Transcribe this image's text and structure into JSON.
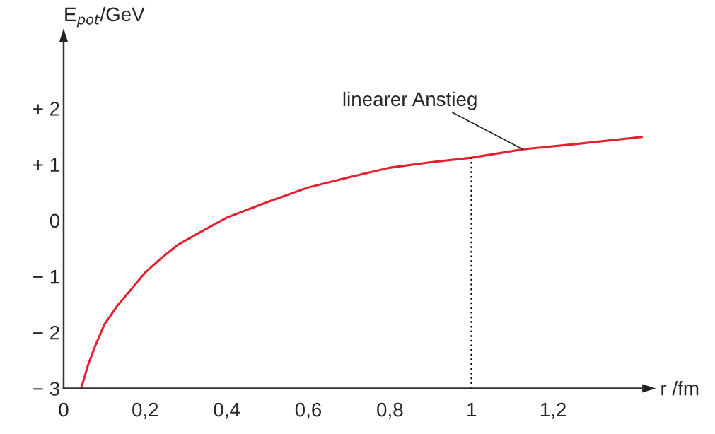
{
  "chart_data": {
    "type": "line",
    "xlabel": "r /fm",
    "ylabel": "E$_{pot}$/GeV",
    "x": [
      0.043,
      0.06,
      0.078,
      0.1,
      0.131,
      0.16,
      0.2,
      0.24,
      0.279,
      0.33,
      0.4,
      0.5,
      0.6,
      0.7,
      0.798,
      0.9,
      1.0,
      1.126,
      1.25,
      1.418
    ],
    "series": [
      {
        "color": "#e3202e",
        "values": [
          -3,
          -2.58,
          -2.23,
          -1.86,
          -1.53,
          -1.28,
          -0.93,
          -0.67,
          -0.44,
          -0.23,
          0.05,
          0.33,
          0.59,
          0.77,
          0.94,
          1.04,
          1.12,
          1.27,
          1.36,
          1.49
        ]
      }
    ],
    "xlim": [
      0,
      1.42
    ],
    "ylim": [
      -3,
      3.2
    ],
    "xticks": [
      0,
      {
        "value": 0.2,
        "label": "0,2"
      },
      {
        "value": 0.4,
        "label": "0,4"
      },
      {
        "value": 0.6,
        "label": "0,6"
      },
      {
        "value": 0.8,
        "label": "0,8"
      },
      1,
      {
        "value": 1.2,
        "label": "1,2"
      }
    ],
    "yticks": [
      {
        "value": -3,
        "label": "− 3"
      },
      {
        "value": -2,
        "label": "− 2"
      },
      {
        "value": -1,
        "label": "− 1"
      },
      0,
      {
        "value": 1,
        "label": "+ 1"
      },
      {
        "value": 2,
        "label": "+ 2"
      }
    ],
    "ref_lines": [
      {
        "axis": "x",
        "value": 1,
        "line_style": "dotted",
        "color": "#000000"
      }
    ],
    "annotations": [
      {
        "text": "linearer Anstieg",
        "x": 1.126,
        "y": 1.27
      }
    ],
    "grid": false,
    "legend": false,
    "marker": "none",
    "line_style": "solid"
  }
}
